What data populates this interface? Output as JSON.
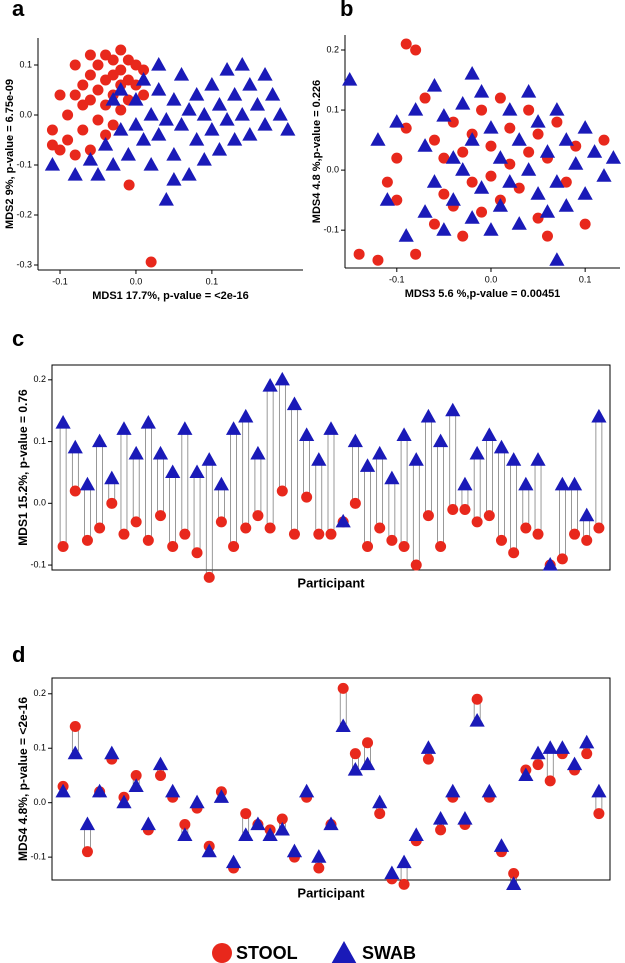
{
  "chart_data": [
    {
      "type": "scatter",
      "title": "a",
      "x_label": "MDS1 17.7%, p-value = <2e-16",
      "y_label": "MDS2 9%, p-value = 6.75e-09",
      "xlim": [
        -0.129,
        0.22
      ],
      "ylim": [
        -0.31,
        0.154
      ],
      "xticks": [
        -0.1,
        {
          "value": 0,
          "label": "0.0"
        },
        0.1
      ],
      "yticks": [
        0.1,
        {
          "value": 0,
          "label": "0.0"
        },
        -0.1,
        -0.2,
        -0.3
      ],
      "series": [
        {
          "name": "STOOL",
          "color": "#e8281c",
          "x": [
            -0.11,
            -0.1,
            -0.09,
            -0.09,
            -0.08,
            -0.08,
            -0.07,
            -0.07,
            -0.07,
            -0.06,
            -0.06,
            -0.06,
            -0.05,
            -0.05,
            -0.05,
            -0.04,
            -0.04,
            -0.04,
            -0.04,
            -0.03,
            -0.03,
            -0.03,
            -0.03,
            -0.02,
            -0.02,
            -0.02,
            -0.02,
            -0.01,
            -0.01,
            -0.01,
            0,
            0,
            0.01,
            0.01,
            -0.06,
            -0.08,
            -0.1,
            -0.009,
            0.02,
            -0.11
          ],
          "y": [
            -0.03,
            -0.07,
            -0.05,
            0,
            0.04,
            -0.08,
            0.02,
            0.06,
            -0.03,
            0.08,
            0.03,
            -0.07,
            0.1,
            0.05,
            -0.01,
            0.12,
            0.07,
            0.02,
            -0.04,
            0.11,
            0.08,
            0.04,
            -0.02,
            0.13,
            0.09,
            0.06,
            0.01,
            0.11,
            0.07,
            0.03,
            0.1,
            0.06,
            0.09,
            0.04,
            0.12,
            0.1,
            0.04,
            -0.14,
            -0.294,
            -0.06
          ]
        },
        {
          "name": "SWAB",
          "color": "#1a1ab8",
          "x": [
            -0.11,
            -0.08,
            -0.06,
            -0.05,
            -0.04,
            -0.03,
            -0.02,
            -0.02,
            -0.01,
            0,
            0,
            0.01,
            0.01,
            0.02,
            0.02,
            0.03,
            0.03,
            0.04,
            0.04,
            0.05,
            0.05,
            0.06,
            0.06,
            0.07,
            0.07,
            0.08,
            0.08,
            0.09,
            0.09,
            0.1,
            0.1,
            0.11,
            0.11,
            0.12,
            0.12,
            0.13,
            0.13,
            0.14,
            0.14,
            0.15,
            0.15,
            0.16,
            0.17,
            0.17,
            0.18,
            0.19,
            0.2,
            0.03,
            -0.03,
            0.05
          ],
          "y": [
            -0.1,
            -0.12,
            -0.09,
            -0.12,
            -0.06,
            -0.1,
            -0.03,
            0.05,
            -0.08,
            -0.02,
            0.03,
            -0.05,
            0.07,
            -0.1,
            0,
            -0.04,
            0.05,
            -0.17,
            -0.01,
            0.03,
            -0.08,
            -0.02,
            0.08,
            -0.12,
            0.01,
            -0.05,
            0.04,
            0,
            -0.09,
            0.06,
            -0.03,
            0.02,
            -0.07,
            0.09,
            -0.01,
            0.04,
            -0.05,
            0.1,
            0,
            0.06,
            -0.04,
            0.02,
            0.08,
            -0.02,
            0.04,
            0,
            -0.03,
            0.1,
            0.03,
            -0.13
          ]
        }
      ]
    },
    {
      "type": "scatter",
      "title": "b",
      "x_label": "MDS3   5.6 %,p-value =  0.00451",
      "y_label": "MDS4   4.8 %,p-value =  0.226",
      "xlim": [
        -0.155,
        0.137
      ],
      "ylim": [
        -0.163,
        0.225
      ],
      "xticks": [
        -0.1,
        {
          "value": 0,
          "label": "0.0"
        },
        0.1
      ],
      "yticks": [
        0.2,
        0.1,
        {
          "value": 0,
          "label": "0.0"
        },
        -0.1
      ],
      "series": [
        {
          "name": "STOOL",
          "color": "#e8281c",
          "x": [
            -0.14,
            -0.12,
            -0.1,
            -0.09,
            -0.08,
            -0.08,
            -0.1,
            -0.11,
            -0.09,
            -0.07,
            -0.06,
            -0.06,
            -0.05,
            -0.05,
            -0.04,
            -0.04,
            -0.03,
            -0.03,
            -0.02,
            -0.02,
            -0.01,
            -0.01,
            0,
            0,
            0.01,
            0.01,
            0.02,
            0.02,
            0.03,
            0.04,
            0.04,
            0.05,
            0.05,
            0.06,
            0.06,
            0.07,
            0.08,
            0.09,
            0.1,
            0.12
          ],
          "y": [
            -0.14,
            -0.15,
            -0.05,
            0.21,
            0.2,
            -0.14,
            0.02,
            -0.02,
            0.07,
            0.12,
            0.05,
            -0.09,
            0.02,
            -0.04,
            0.08,
            -0.06,
            0.03,
            -0.11,
            0.06,
            -0.02,
            0.1,
            -0.07,
            0.04,
            -0.01,
            0.12,
            -0.05,
            0.07,
            0.01,
            -0.03,
            0.1,
            0.03,
            -0.08,
            0.06,
            -0.11,
            0.02,
            0.08,
            -0.02,
            0.04,
            -0.09,
            0.05
          ]
        },
        {
          "name": "SWAB",
          "color": "#1a1ab8",
          "x": [
            -0.15,
            -0.12,
            -0.1,
            -0.09,
            -0.08,
            -0.07,
            -0.07,
            -0.06,
            -0.06,
            -0.05,
            -0.05,
            -0.04,
            -0.04,
            -0.03,
            -0.03,
            -0.02,
            -0.02,
            -0.01,
            -0.01,
            0,
            0,
            0.01,
            0.01,
            0.02,
            0.02,
            0.03,
            0.03,
            0.04,
            0.04,
            0.05,
            0.05,
            0.06,
            0.06,
            0.07,
            0.07,
            0.07,
            0.08,
            0.08,
            0.09,
            0.1,
            0.1,
            0.11,
            0.12,
            0.13,
            -0.11,
            -0.02
          ],
          "y": [
            0.15,
            0.05,
            0.08,
            -0.11,
            0.1,
            -0.07,
            0.04,
            0.14,
            -0.02,
            0.09,
            -0.1,
            0.02,
            -0.05,
            0.11,
            0,
            -0.08,
            0.05,
            0.13,
            -0.03,
            0.07,
            -0.1,
            0.02,
            -0.06,
            0.1,
            -0.02,
            0.05,
            -0.09,
            0,
            0.13,
            -0.04,
            0.08,
            0.03,
            -0.07,
            0.1,
            -0.02,
            -0.15,
            0.05,
            -0.06,
            0.01,
            0.07,
            -0.04,
            0.03,
            -0.01,
            0.02,
            -0.05,
            0.16
          ]
        }
      ]
    },
    {
      "type": "strip",
      "title": "c",
      "x_label": "Participant",
      "y_label": "MDS1 15.2%, p-value = 0.76",
      "ylim": [
        -0.108,
        0.224
      ],
      "yticks": [
        0.2,
        0.1,
        {
          "value": 0,
          "label": "0.0"
        },
        -0.1
      ],
      "categories": [
        null,
        null,
        null,
        null,
        null,
        null,
        null,
        null,
        null,
        null,
        null,
        null,
        null,
        null,
        null,
        null,
        null,
        null,
        null,
        null,
        null,
        null,
        null,
        null,
        null,
        null,
        null,
        null,
        null,
        null,
        null,
        null,
        null,
        null,
        null,
        null,
        null,
        null,
        null,
        null,
        null,
        null,
        null,
        null,
        null
      ],
      "series": [
        {
          "name": "STOOL",
          "color": "#e8281c",
          "values": [
            -0.07,
            0.02,
            -0.06,
            -0.04,
            0,
            -0.05,
            -0.03,
            -0.06,
            -0.02,
            -0.07,
            -0.05,
            -0.08,
            -0.12,
            -0.03,
            -0.07,
            -0.04,
            -0.02,
            -0.04,
            0.02,
            -0.05,
            0.01,
            -0.05,
            -0.05,
            -0.03,
            0,
            -0.07,
            -0.04,
            -0.06,
            -0.07,
            -0.1,
            -0.02,
            -0.07,
            -0.01,
            -0.01,
            -0.03,
            -0.02,
            -0.06,
            -0.08,
            -0.04,
            -0.05,
            -0.1,
            -0.09,
            -0.05,
            -0.06,
            -0.04
          ]
        },
        {
          "name": "SWAB",
          "color": "#1a1ab8",
          "values": [
            0.13,
            0.09,
            0.03,
            0.1,
            0.04,
            0.12,
            0.08,
            0.13,
            0.08,
            0.05,
            0.12,
            0.05,
            0.07,
            0.03,
            0.12,
            0.14,
            0.08,
            0.19,
            0.2,
            0.16,
            0.11,
            0.07,
            0.12,
            -0.03,
            0.1,
            0.06,
            0.08,
            0.04,
            0.11,
            0.07,
            0.14,
            0.1,
            0.15,
            0.03,
            0.08,
            0.11,
            0.09,
            0.07,
            0.03,
            0.07,
            -0.1,
            0.03,
            0.03,
            -0.02,
            0.14
          ]
        }
      ]
    },
    {
      "type": "strip",
      "title": "d",
      "x_label": "Participant",
      "y_label": "MDS4 4.8%, p-value = <2e-16",
      "ylim": [
        -0.142,
        0.229
      ],
      "yticks": [
        0.2,
        0.1,
        {
          "value": 0,
          "label": "0.0"
        },
        -0.1
      ],
      "categories": [
        null,
        null,
        null,
        null,
        null,
        null,
        null,
        null,
        null,
        null,
        null,
        null,
        null,
        null,
        null,
        null,
        null,
        null,
        null,
        null,
        null,
        null,
        null,
        null,
        null,
        null,
        null,
        null,
        null,
        null,
        null,
        null,
        null,
        null,
        null,
        null,
        null,
        null,
        null,
        null,
        null,
        null,
        null,
        null,
        null
      ],
      "series": [
        {
          "name": "STOOL",
          "color": "#e8281c",
          "values": [
            0.03,
            0.14,
            -0.09,
            0.02,
            0.08,
            0.01,
            0.05,
            -0.05,
            0.05,
            0.01,
            -0.04,
            -0.01,
            -0.08,
            0.02,
            -0.12,
            -0.02,
            -0.04,
            -0.05,
            -0.03,
            -0.1,
            0.01,
            -0.12,
            -0.04,
            0.21,
            0.09,
            0.11,
            -0.02,
            -0.14,
            -0.15,
            -0.07,
            0.08,
            -0.05,
            0.01,
            -0.04,
            0.19,
            0.01,
            -0.09,
            -0.13,
            0.06,
            0.07,
            0.04,
            0.09,
            0.06,
            0.09,
            -0.02
          ]
        },
        {
          "name": "SWAB",
          "color": "#1a1ab8",
          "values": [
            0.02,
            0.09,
            -0.04,
            0.02,
            0.09,
            0,
            0.03,
            -0.04,
            0.07,
            0.02,
            -0.06,
            0,
            -0.09,
            0.01,
            -0.11,
            -0.06,
            -0.04,
            -0.06,
            -0.05,
            -0.09,
            0.02,
            -0.1,
            -0.04,
            0.14,
            0.06,
            0.07,
            0,
            -0.13,
            -0.11,
            -0.06,
            0.1,
            -0.03,
            0.02,
            -0.03,
            0.15,
            0.02,
            -0.08,
            -0.15,
            0.05,
            0.09,
            0.1,
            0.1,
            0.07,
            0.11,
            0.02
          ]
        }
      ]
    }
  ]
}
